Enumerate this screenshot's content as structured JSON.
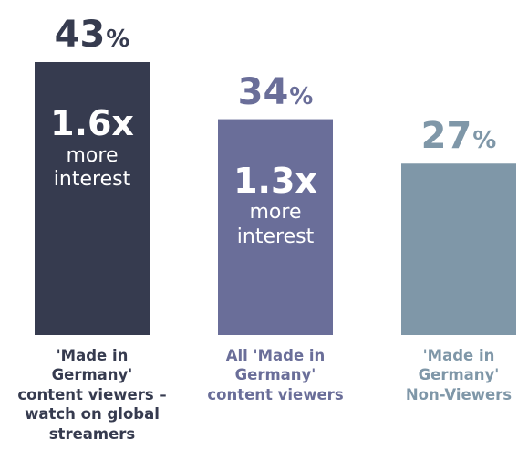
{
  "chart_data": {
    "type": "bar",
    "unit": "%",
    "categories": [
      "'Made in Germany' content viewers – watch on global streamers",
      "All 'Made in Germany' content viewers",
      "'Made in Germany' Non-Viewers"
    ],
    "category_lines": [
      [
        "'Made in",
        "Germany'",
        "content viewers –",
        "watch on global",
        "streamers"
      ],
      [
        "All 'Made in",
        "Germany'",
        "content viewers"
      ],
      [
        "'Made in",
        "Germany'",
        "Non-Viewers"
      ]
    ],
    "values": [
      43,
      34,
      27
    ],
    "value_labels": [
      "43",
      "34",
      "27"
    ],
    "multipliers": [
      {
        "factor": "1.6x",
        "line1": "more",
        "line2": "interest"
      },
      {
        "factor": "1.3x",
        "line1": "more",
        "line2": "interest"
      },
      null
    ],
    "colors": [
      "#363b4f",
      "#6a6e99",
      "#7f97a8"
    ],
    "label_colors": [
      "#363b4f",
      "#6a6e99",
      "#7f97a8"
    ],
    "ylim": [
      0,
      43
    ],
    "grid": false,
    "legend": "none"
  }
}
